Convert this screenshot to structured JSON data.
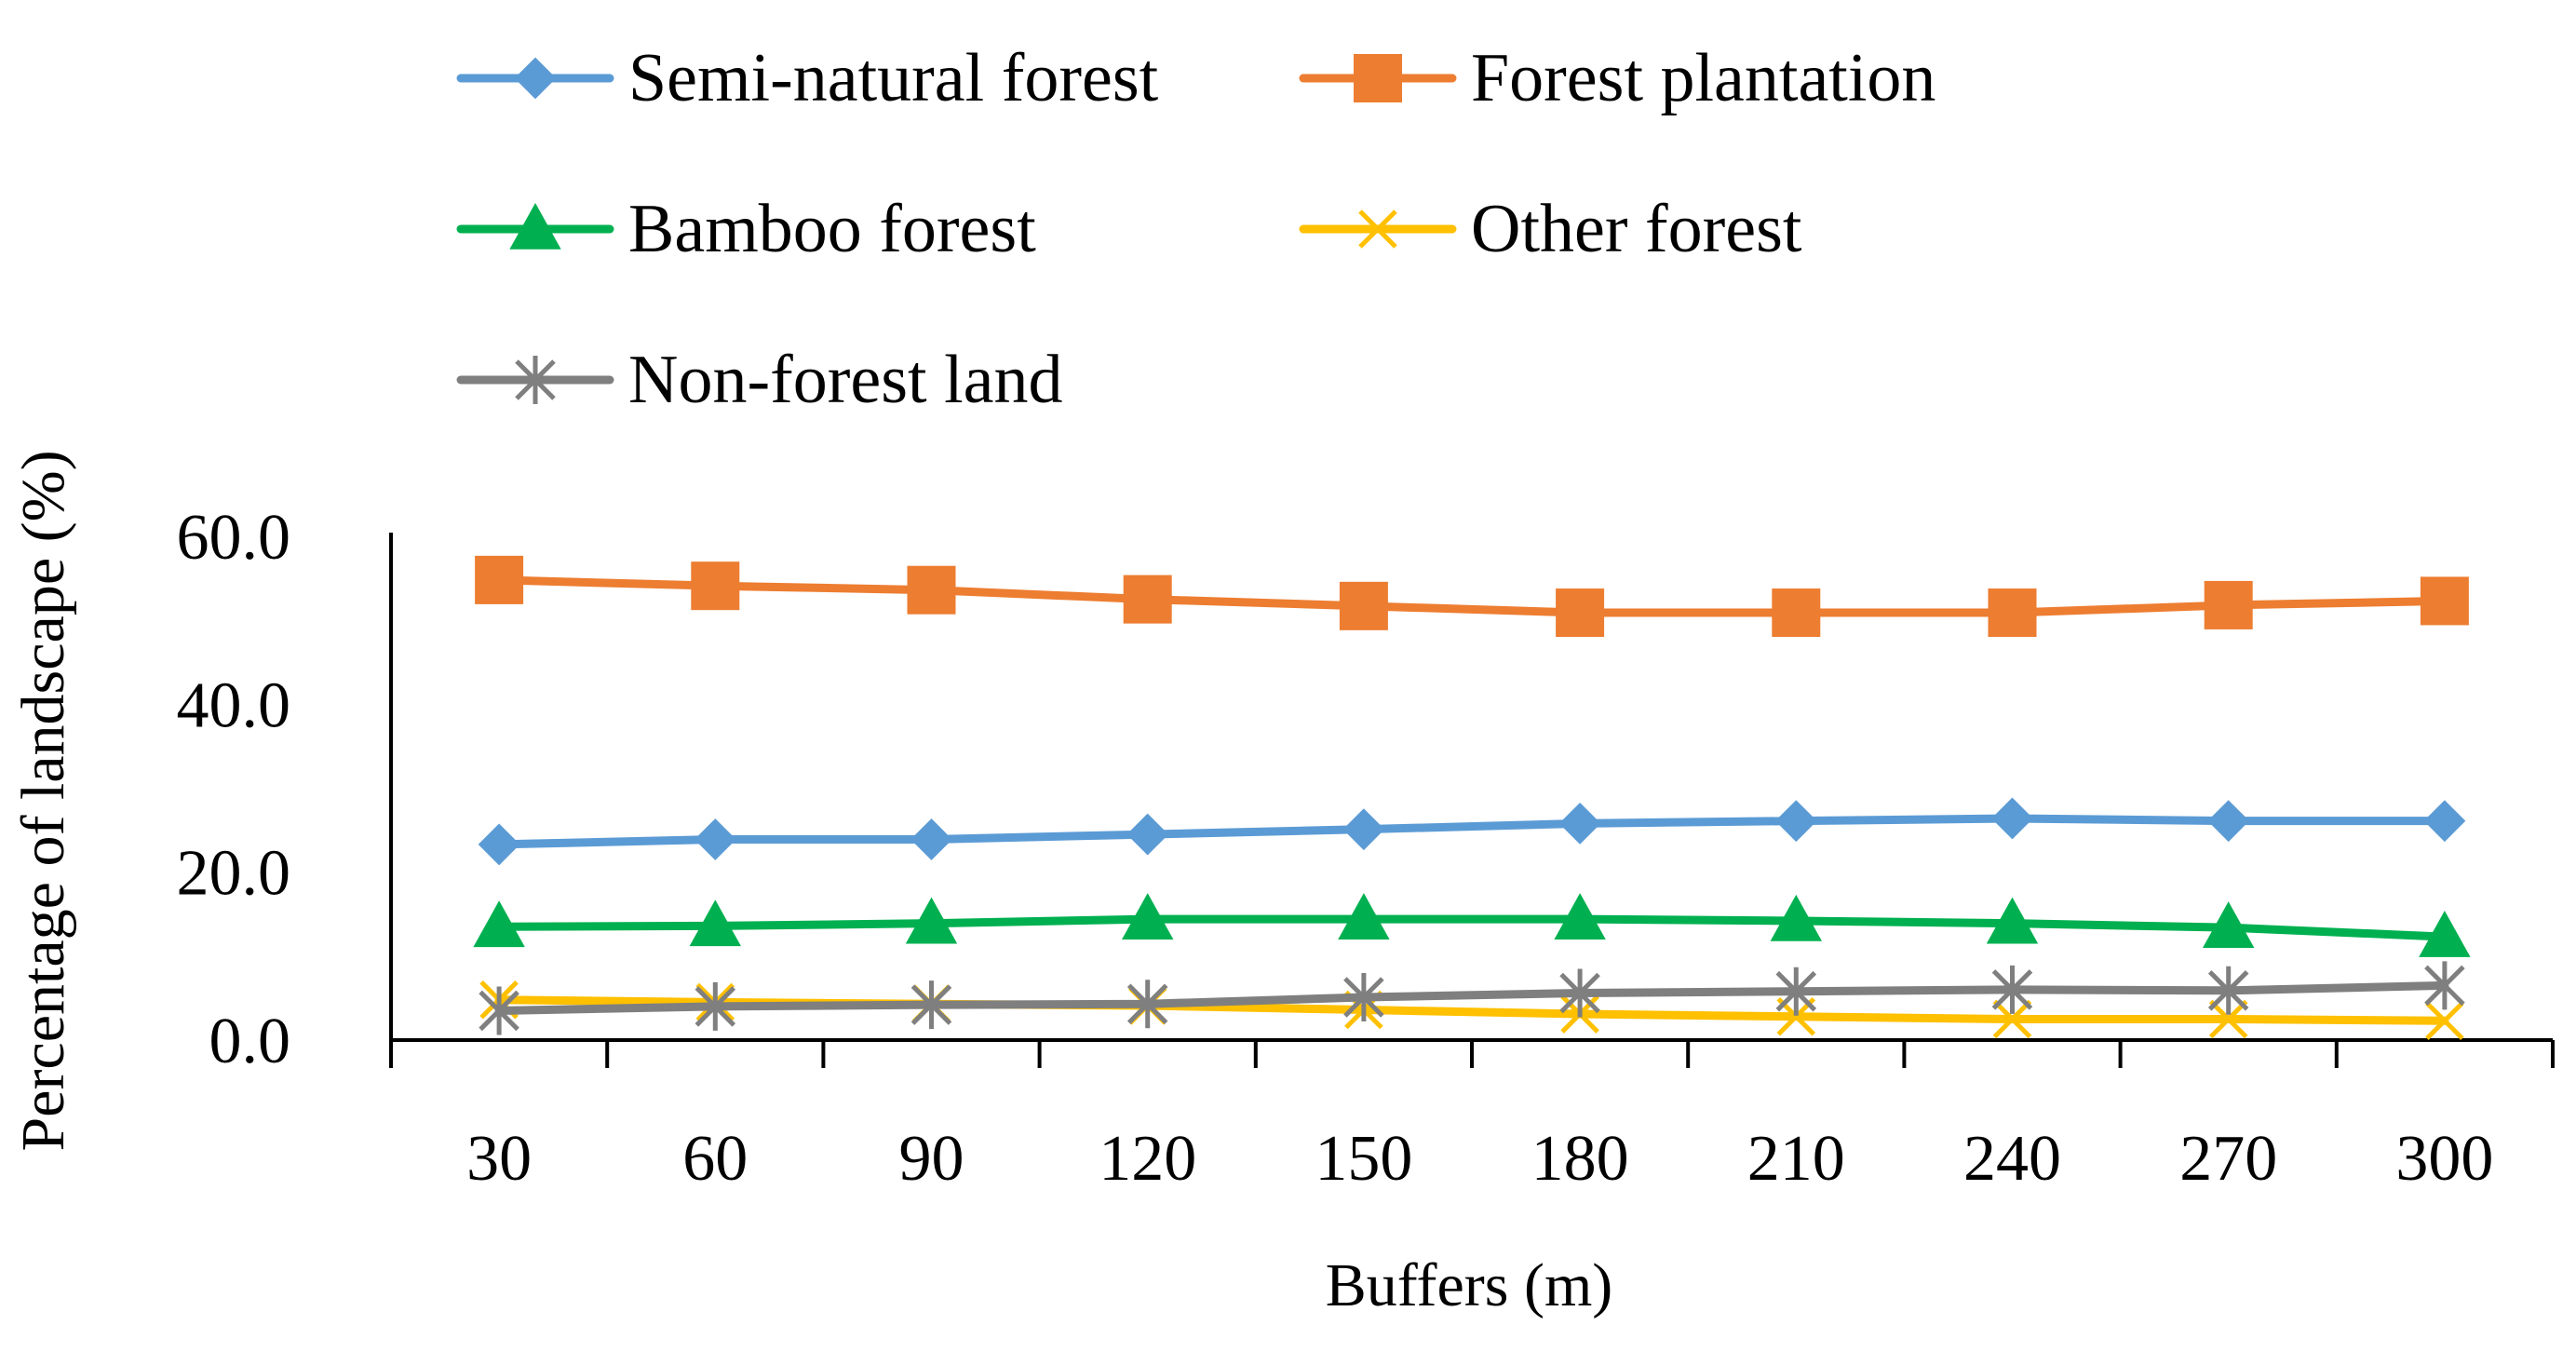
{
  "chart_data": {
    "type": "line",
    "title": "",
    "xlabel": "Buffers (m)",
    "ylabel": "Percentage of landscape (%)",
    "categories": [
      "30",
      "60",
      "90",
      "120",
      "150",
      "180",
      "210",
      "240",
      "270",
      "300"
    ],
    "ylim": [
      0,
      60
    ],
    "yticks": [
      "0.0",
      "20.0",
      "40.0",
      "60.0"
    ],
    "grid": false,
    "legend_position": "top",
    "series": [
      {
        "name": "Semi-natural forest",
        "color": "#5B9BD5",
        "marker": "diamond",
        "values": [
          23.3,
          23.9,
          23.9,
          24.5,
          25.1,
          25.8,
          26.1,
          26.4,
          26.1,
          26.1
        ]
      },
      {
        "name": "Forest plantation",
        "color": "#ED7D31",
        "marker": "square",
        "values": [
          54.8,
          54.1,
          53.6,
          52.5,
          51.7,
          50.9,
          50.9,
          50.9,
          51.8,
          52.3
        ]
      },
      {
        "name": "Bamboo forest",
        "color": "#00B050",
        "marker": "triangle",
        "values": [
          13.5,
          13.6,
          13.9,
          14.4,
          14.4,
          14.4,
          14.2,
          13.9,
          13.4,
          12.3
        ]
      },
      {
        "name": "Other forest",
        "color": "#FFC000",
        "marker": "x",
        "values": [
          4.8,
          4.5,
          4.3,
          4.1,
          3.6,
          3.1,
          2.8,
          2.5,
          2.5,
          2.3
        ]
      },
      {
        "name": "Non-forest land",
        "color": "#7F7F7F",
        "marker": "star",
        "values": [
          3.5,
          4.0,
          4.2,
          4.3,
          5.1,
          5.6,
          5.8,
          6.0,
          5.9,
          6.5
        ]
      }
    ]
  }
}
